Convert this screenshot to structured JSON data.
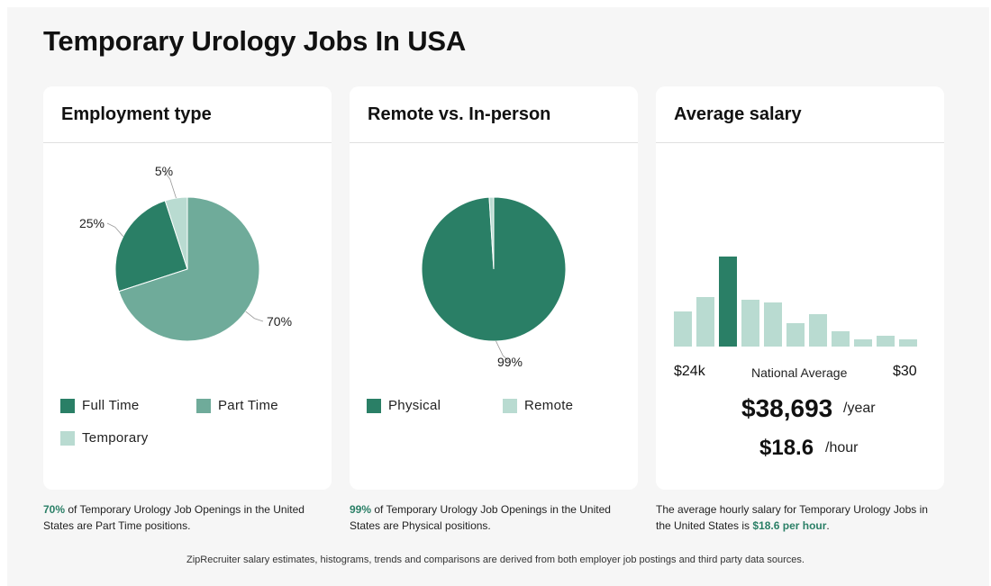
{
  "page": {
    "title": "Temporary Urology Jobs In USA"
  },
  "cards": {
    "employment": {
      "title": "Employment type",
      "legend": [
        "Full Time",
        "Part Time",
        "Temporary"
      ],
      "caption_highlight": "70%",
      "caption_rest": " of Temporary Urology Job Openings in the United States are Part Time positions."
    },
    "remote": {
      "title": "Remote vs. In-person",
      "legend": [
        "Physical",
        "Remote"
      ],
      "caption_highlight": "99%",
      "caption_rest": " of Temporary Urology Job Openings in the United States are Physical positions."
    },
    "salary": {
      "title": "Average salary",
      "axis_min": "$24k",
      "axis_mid": "National Average",
      "axis_max": "$30",
      "yearly": "$38,693",
      "yearly_unit": "/year",
      "hourly": "$18.6",
      "hourly_unit": "/hour",
      "caption_pre": "The average hourly salary for Temporary Urology Jobs in the United States is ",
      "caption_highlight": "$18.6 per hour",
      "caption_post": "."
    }
  },
  "footer": "ZipRecruiter salary estimates, histograms, trends and comparisons are derived from both employer job postings and third party data sources.",
  "colors": {
    "dark": "#2a7f66",
    "medium": "#6fab9a",
    "light": "#b9dbd1",
    "highlight": "#2a7f66"
  },
  "chart_data": [
    {
      "type": "pie",
      "title": "Employment type",
      "categories": [
        "Full Time",
        "Part Time",
        "Temporary"
      ],
      "values": [
        25,
        70,
        5
      ],
      "labels": [
        "25%",
        "70%",
        "5%"
      ],
      "colors": [
        "#2a7f66",
        "#6fab9a",
        "#b9dbd1"
      ]
    },
    {
      "type": "pie",
      "title": "Remote vs. In-person",
      "categories": [
        "Physical",
        "Remote"
      ],
      "values": [
        99,
        1
      ],
      "labels": [
        "99%",
        ""
      ],
      "colors": [
        "#2a7f66",
        "#b9dbd1"
      ]
    },
    {
      "type": "bar",
      "title": "Average salary",
      "values": [
        39,
        55,
        100,
        52,
        49,
        26,
        36,
        17,
        8,
        12,
        8
      ],
      "highlight_index": 2,
      "xlabel_left": "$24k",
      "xlabel_center": "National Average",
      "xlabel_right": "$30"
    }
  ]
}
